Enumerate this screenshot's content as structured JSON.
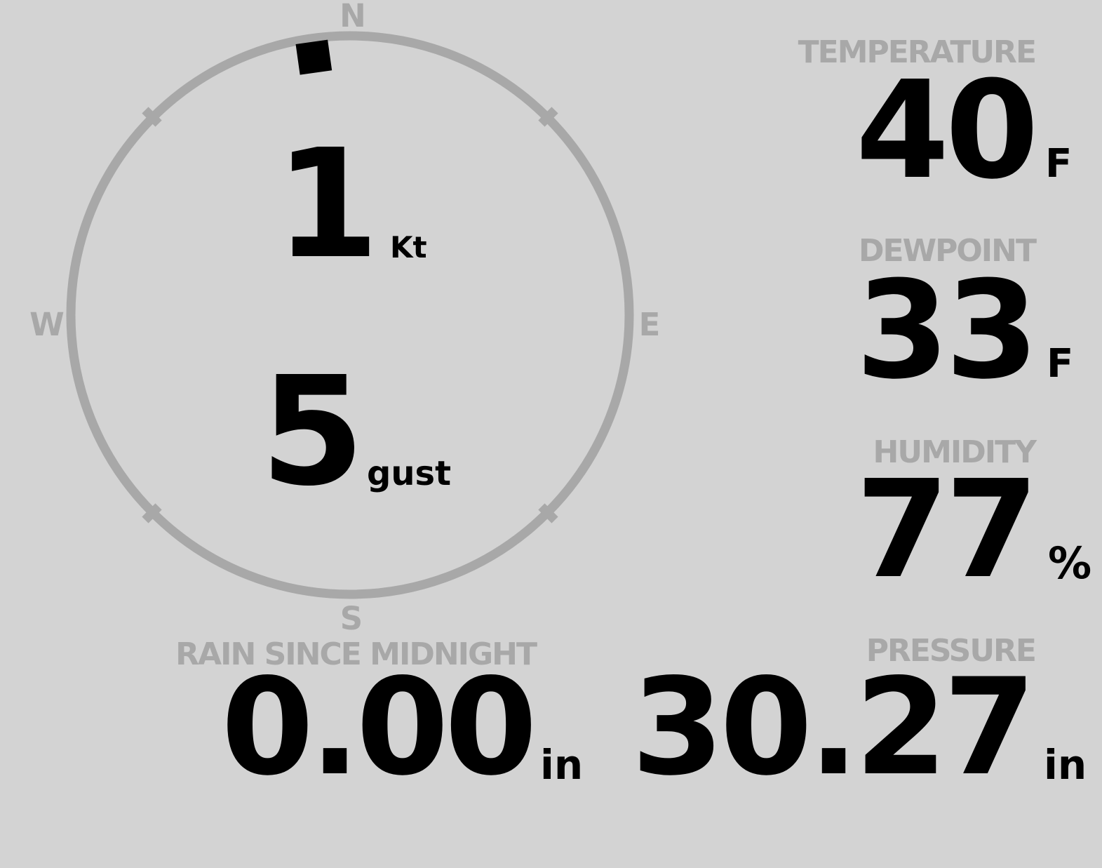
{
  "colors": {
    "background": "#d3d3d3",
    "muted_gray": "#a8a8a8",
    "value_black": "#000000"
  },
  "compass": {
    "cardinals": {
      "north": "N",
      "east": "E",
      "south": "S",
      "west": "W"
    },
    "wind_direction_deg": 352,
    "speed": {
      "value": "1",
      "unit": "Kt"
    },
    "gust": {
      "value": "5",
      "unit": "gust"
    }
  },
  "readings": {
    "temperature": {
      "label": "TEMPERATURE",
      "value": "40",
      "unit": "F"
    },
    "dewpoint": {
      "label": "DEWPOINT",
      "value": "33",
      "unit": "F"
    },
    "humidity": {
      "label": "HUMIDITY",
      "value": "77",
      "unit": "%"
    },
    "rain": {
      "label": "RAIN SINCE MIDNIGHT",
      "value": "0.00",
      "unit": "in"
    },
    "pressure": {
      "label": "PRESSURE",
      "value": "30.27",
      "unit": "in"
    }
  }
}
